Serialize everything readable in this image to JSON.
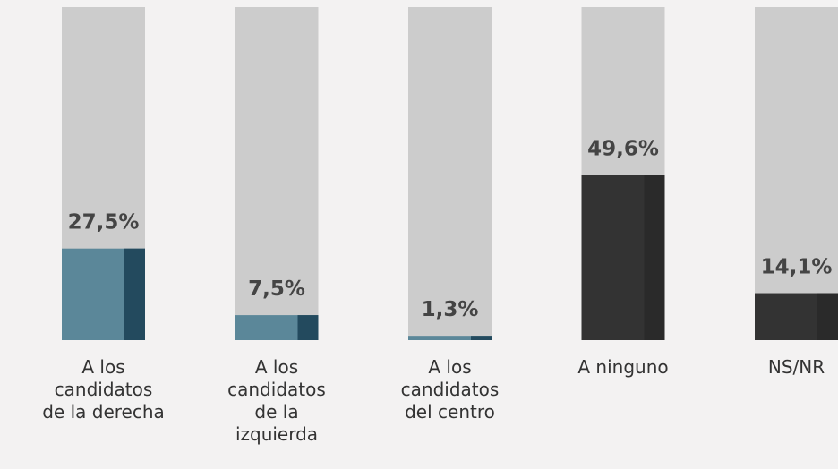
{
  "chart_data": {
    "type": "bar",
    "categories": [
      "A los\ncandidatos\nde la derecha",
      "A los\ncandidatos\nde la\nizquierda",
      "A los\ncandidatos\ndel centro",
      "A ninguno",
      "NS/NR"
    ],
    "values": [
      27.5,
      7.5,
      1.3,
      49.6,
      14.1
    ],
    "value_labels": [
      "27,5%",
      "7,5%",
      "1,3%",
      "49,6%",
      "14,1%"
    ],
    "colors": [
      "#5b8799",
      "#5b8799",
      "#5b8799",
      "#333333",
      "#333333"
    ],
    "accent_colors": [
      "#234a5e",
      "#234a5e",
      "#234a5e",
      "#2a2a2a",
      "#2a2a2a"
    ],
    "track_color": "#cccccc",
    "ylim": [
      0,
      100
    ]
  }
}
